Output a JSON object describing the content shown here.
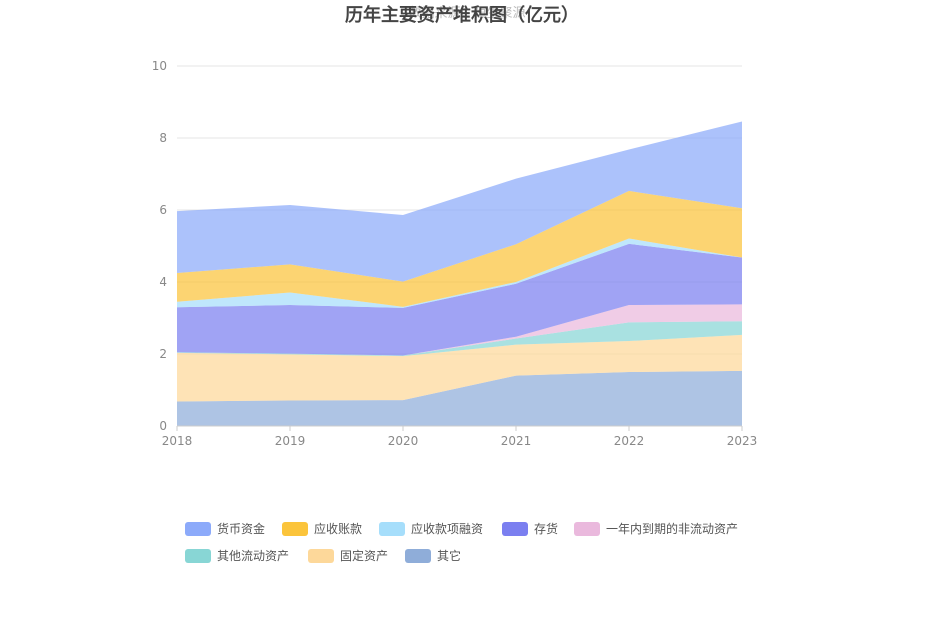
{
  "chart_data": {
    "type": "area",
    "stacked": true,
    "title": "历年主要资产堆积图（亿元）",
    "watermark": "数据来源：恒生聚源",
    "x": [
      "2018",
      "2019",
      "2020",
      "2021",
      "2022",
      "2023"
    ],
    "ylim": [
      0,
      10
    ],
    "yticks": [
      0,
      2,
      4,
      6,
      8,
      10
    ],
    "grid": true,
    "legend_position": "bottom",
    "series": [
      {
        "name": "其它",
        "color": "#8fadd9",
        "values": [
          0.68,
          0.71,
          0.72,
          1.4,
          1.5,
          1.53
        ]
      },
      {
        "name": "固定资产",
        "color": "#fdd89a",
        "values": [
          1.35,
          1.28,
          1.22,
          0.86,
          0.86,
          1.0
        ]
      },
      {
        "name": "其他流动资产",
        "color": "#88d6d5",
        "values": [
          0.02,
          0.02,
          0.02,
          0.17,
          0.52,
          0.38
        ]
      },
      {
        "name": "一年内到期的非流动资产",
        "color": "#eab9dd",
        "values": [
          0.0,
          0.0,
          0.0,
          0.05,
          0.48,
          0.47
        ]
      },
      {
        "name": "存货",
        "color": "#7b7ff0",
        "values": [
          1.25,
          1.35,
          1.32,
          1.47,
          1.7,
          1.3
        ]
      },
      {
        "name": "应收款项融资",
        "color": "#a6defb",
        "values": [
          0.15,
          0.35,
          0.03,
          0.05,
          0.15,
          0.0
        ]
      },
      {
        "name": "应收账款",
        "color": "#fbc43b",
        "values": [
          0.8,
          0.78,
          0.7,
          1.05,
          1.32,
          1.37
        ]
      },
      {
        "name": "货币资金",
        "color": "#8caafa",
        "values": [
          1.72,
          1.65,
          1.85,
          1.82,
          1.15,
          2.41
        ]
      }
    ],
    "legend_order": [
      "货币资金",
      "应收账款",
      "应收款项融资",
      "存货",
      "一年内到期的非流动资产",
      "其他流动资产",
      "固定资产",
      "其它"
    ]
  }
}
